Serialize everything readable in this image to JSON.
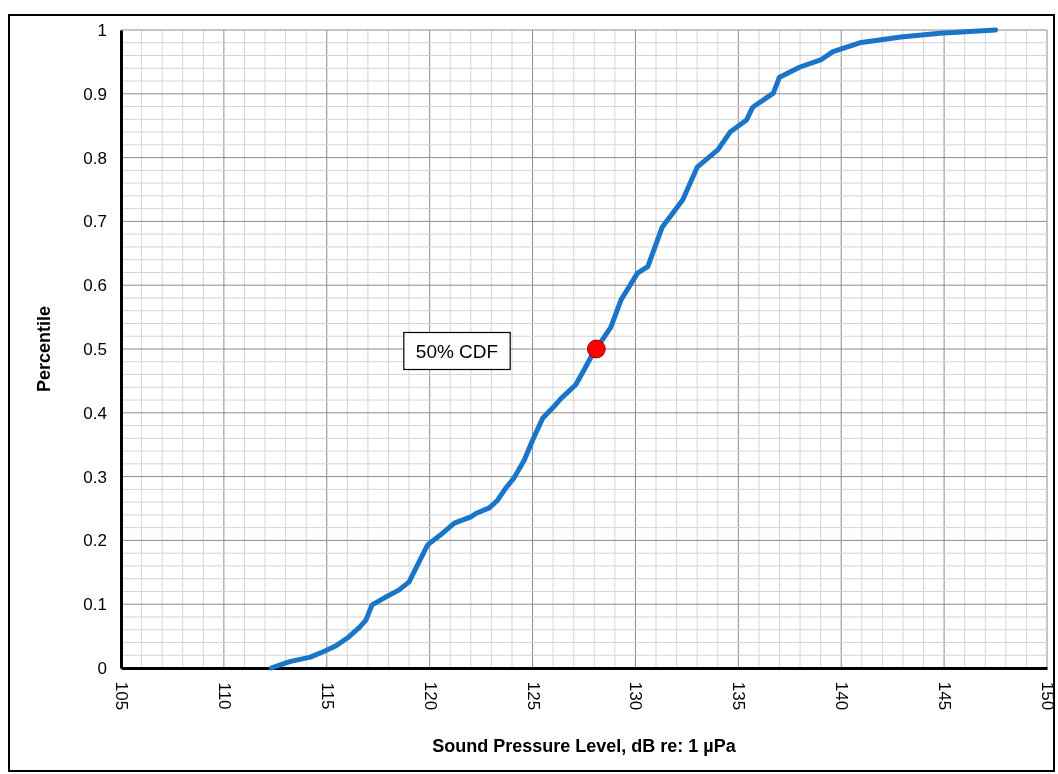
{
  "chart_data": {
    "type": "line",
    "xlabel": "Sound Pressure Level, dB re: 1 µPa",
    "ylabel": "Percentile",
    "xlim": [
      105,
      150
    ],
    "xticks": [
      105,
      110,
      115,
      120,
      125,
      130,
      135,
      140,
      145,
      150
    ],
    "ylim": [
      0,
      1
    ],
    "yticks": [
      0,
      0.1,
      0.2,
      0.3,
      0.4,
      0.5,
      0.6,
      0.7,
      0.8,
      0.9,
      1
    ],
    "grid": true,
    "annotations": [
      "50% CDF"
    ],
    "series": [
      {
        "color": "#1a75c9",
        "line_style": "solid",
        "x": [
          112.3,
          113.2,
          114.2,
          114.8,
          115.4,
          116.0,
          116.6,
          116.9,
          117.2,
          117.8,
          118.5,
          119.0,
          119.4,
          119.9,
          120.5,
          121.2,
          122.0,
          122.3,
          122.9,
          123.3,
          123.7,
          124.1,
          124.6,
          125.0,
          125.5,
          126.1,
          126.4,
          127.1,
          127.5,
          127.9,
          128.1,
          128.8,
          129.3,
          130.1,
          130.6,
          131.3,
          132.3,
          133.0,
          134.0,
          134.6,
          135.4,
          135.7,
          136.7,
          137.0,
          138.0,
          139.0,
          139.6,
          140.9,
          142.9,
          144.8,
          147.5
        ],
        "values": [
          0,
          0.01,
          0.017,
          0.025,
          0.034,
          0.047,
          0.064,
          0.075,
          0.099,
          0.11,
          0.122,
          0.135,
          0.161,
          0.193,
          0.208,
          0.227,
          0.237,
          0.243,
          0.251,
          0.263,
          0.282,
          0.298,
          0.326,
          0.357,
          0.392,
          0.412,
          0.423,
          0.444,
          0.467,
          0.491,
          null,
          0.534,
          0.577,
          0.619,
          0.629,
          0.691,
          0.734,
          0.785,
          0.812,
          0.84,
          0.859,
          0.879,
          0.901,
          0.926,
          0.942,
          0.953,
          0.966,
          0.98,
          0.989,
          0.995,
          1
        ]
      },
      {
        "type": "scatter",
        "color": "#ff0000",
        "marker": "circle",
        "x": [
          128.1
        ],
        "values": [
          0.5
        ]
      }
    ]
  }
}
